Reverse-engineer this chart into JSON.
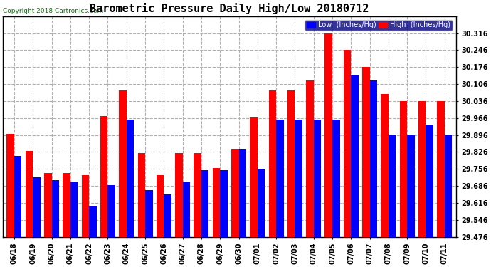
{
  "title": "Barometric Pressure Daily High/Low 20180712",
  "copyright": "Copyright 2018 Cartronics.com",
  "legend_low": "Low  (Inches/Hg)",
  "legend_high": "High  (Inches/Hg)",
  "dates": [
    "06/18",
    "06/19",
    "06/20",
    "06/21",
    "06/22",
    "06/23",
    "06/24",
    "06/25",
    "06/26",
    "06/27",
    "06/28",
    "06/29",
    "06/30",
    "07/01",
    "07/02",
    "07/03",
    "07/04",
    "07/05",
    "07/06",
    "07/07",
    "07/08",
    "07/09",
    "07/10",
    "07/11"
  ],
  "low_values": [
    29.81,
    29.72,
    29.71,
    29.7,
    29.6,
    29.69,
    29.96,
    29.67,
    29.65,
    29.7,
    29.75,
    29.75,
    29.84,
    29.755,
    29.96,
    29.96,
    29.96,
    29.96,
    30.14,
    30.12,
    29.895,
    29.895,
    29.94,
    29.895
  ],
  "high_values": [
    29.9,
    29.83,
    29.74,
    29.74,
    29.73,
    29.975,
    30.08,
    29.82,
    29.73,
    29.82,
    29.82,
    29.76,
    29.84,
    29.968,
    30.08,
    30.08,
    30.12,
    30.316,
    30.246,
    30.176,
    30.066,
    30.036,
    30.036,
    30.036
  ],
  "ylim_min": 29.476,
  "ylim_max": 30.386,
  "yticks": [
    29.476,
    29.546,
    29.616,
    29.686,
    29.756,
    29.826,
    29.896,
    29.966,
    30.036,
    30.106,
    30.176,
    30.246,
    30.316
  ],
  "background_color": "#ffffff",
  "low_color": "#0000ff",
  "high_color": "#ff0000",
  "grid_color": "#b0b0b0",
  "title_fontsize": 11,
  "tick_fontsize": 7,
  "bar_width": 0.4
}
